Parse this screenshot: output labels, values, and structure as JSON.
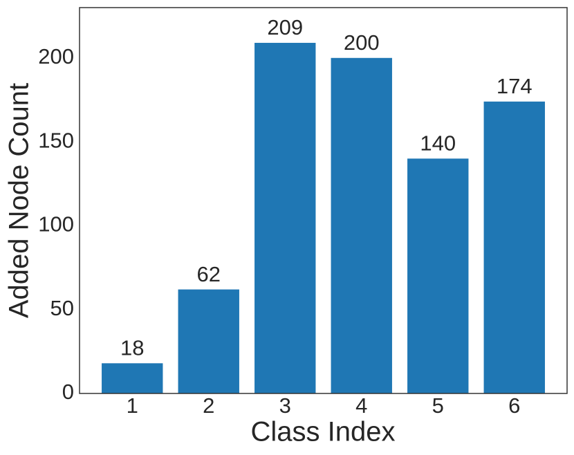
{
  "chart_data": {
    "type": "bar",
    "x_label": "Class Index",
    "y_label": "Added Node Count",
    "categories": [
      "1",
      "2",
      "3",
      "4",
      "5",
      "6"
    ],
    "values": [
      18,
      62,
      209,
      200,
      140,
      174
    ],
    "color": "#1f77b4",
    "ylim": [
      0,
      230
    ],
    "yticks": [
      0,
      50,
      100,
      150,
      200
    ],
    "grid": false
  }
}
